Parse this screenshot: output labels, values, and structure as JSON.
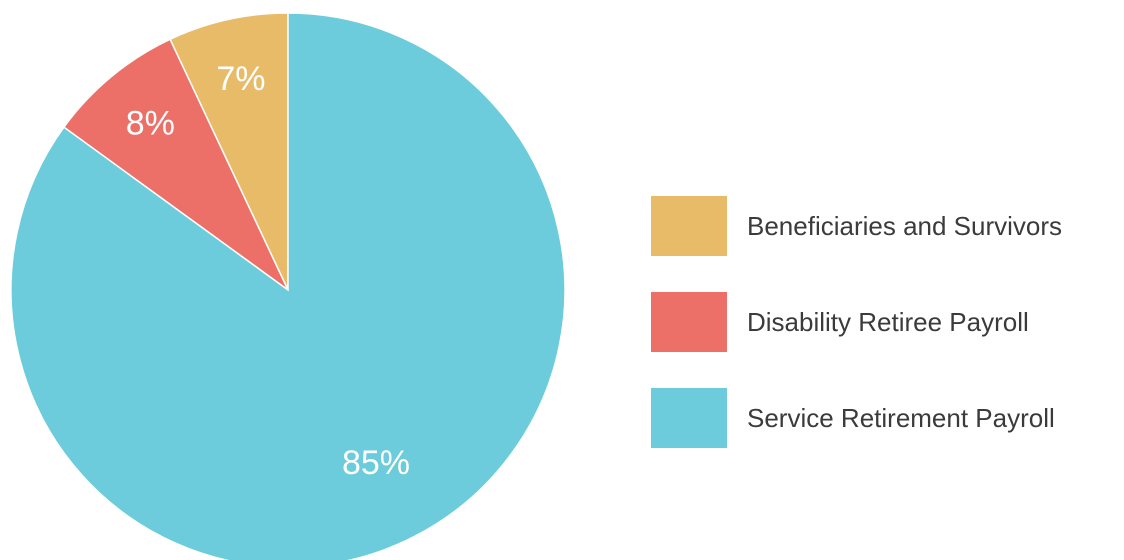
{
  "chart_data": {
    "type": "pie",
    "title": "",
    "categories": [
      "Beneficiaries and Survivors",
      "Disability Retiree Payroll",
      "Service Retirement Payroll"
    ],
    "values": [
      7,
      8,
      85
    ],
    "labels": [
      "7%",
      "8%",
      "85%"
    ],
    "colors": [
      "#E8BB69",
      "#EC7067",
      "#6CCCDC"
    ],
    "legend": "right",
    "start": "12 o'clock",
    "direction": "counterclockwise"
  }
}
